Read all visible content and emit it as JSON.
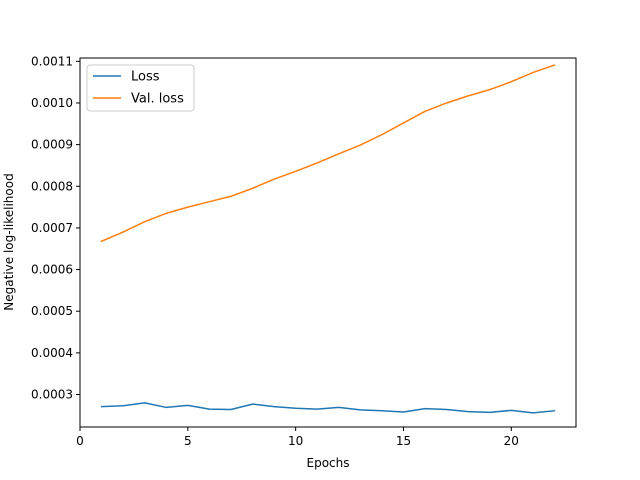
{
  "chart_data": {
    "type": "line",
    "xlabel": "Epochs",
    "ylabel": "Negative log-likelihood",
    "xlim": [
      0,
      23
    ],
    "ylim": [
      0.000222,
      0.001108
    ],
    "xticks": [
      0,
      5,
      10,
      15,
      20
    ],
    "xtick_labels": [
      "0",
      "5",
      "10",
      "15",
      "20"
    ],
    "yticks": [
      0.0003,
      0.0004,
      0.0005,
      0.0006,
      0.0007,
      0.0008,
      0.0009,
      0.001,
      0.0011
    ],
    "ytick_labels": [
      "0.0003",
      "0.0004",
      "0.0005",
      "0.0006",
      "0.0007",
      "0.0008",
      "0.0009",
      "0.0010",
      "0.0011"
    ],
    "grid": false,
    "legend_position": "top-left",
    "x": [
      1,
      2,
      3,
      4,
      5,
      6,
      7,
      8,
      9,
      10,
      11,
      12,
      13,
      14,
      15,
      16,
      17,
      18,
      19,
      20,
      21,
      22
    ],
    "series": [
      {
        "name": "Loss",
        "color": "#1f77b4",
        "values": [
          0.000271,
          0.000273,
          0.00028,
          0.000269,
          0.000274,
          0.000265,
          0.000264,
          0.000277,
          0.000271,
          0.000267,
          0.000265,
          0.000269,
          0.000263,
          0.000261,
          0.000258,
          0.000266,
          0.000264,
          0.000259,
          0.000257,
          0.000262,
          0.000256,
          0.000261
        ]
      },
      {
        "name": "Val. loss",
        "color": "#ff7f0e",
        "values": [
          0.000668,
          0.00069,
          0.000715,
          0.000735,
          0.00075,
          0.000763,
          0.000776,
          0.000795,
          0.000817,
          0.000836,
          0.000856,
          0.000878,
          0.000899,
          0.000924,
          0.000952,
          0.00098,
          0.001,
          0.001017,
          0.001032,
          0.001051,
          0.001073,
          0.001091
        ]
      }
    ]
  }
}
